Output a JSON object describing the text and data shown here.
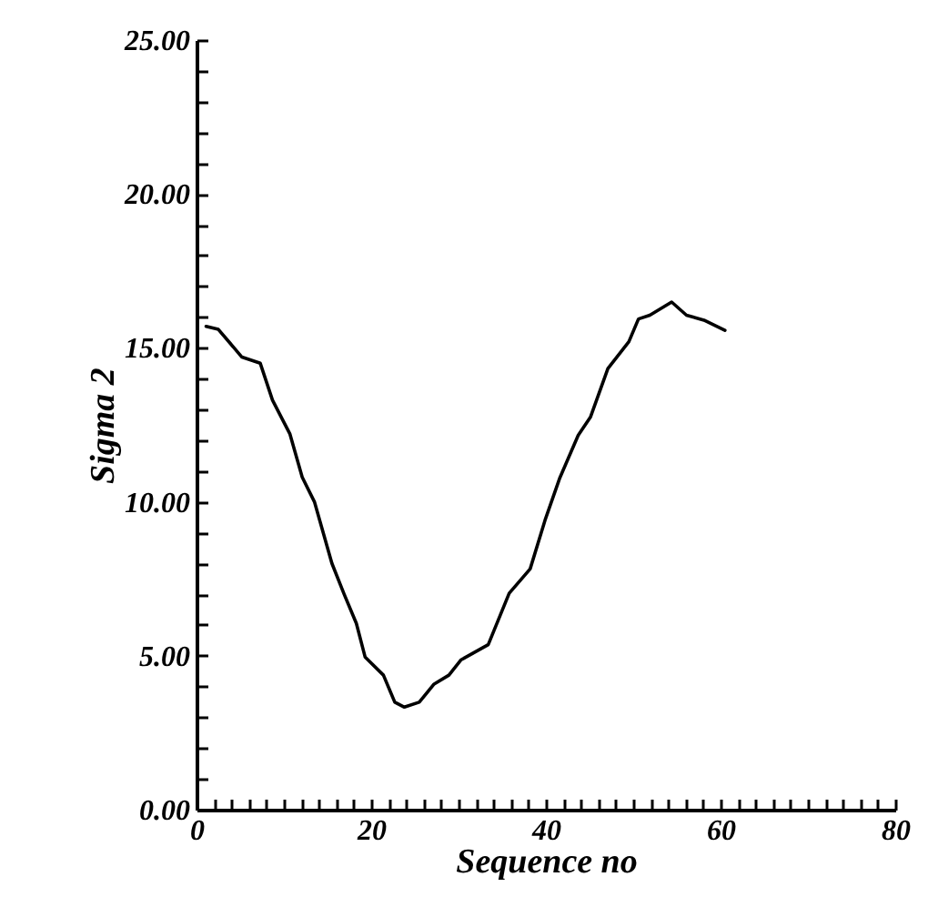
{
  "chart_data": {
    "type": "line",
    "xlabel": "Sequence no",
    "ylabel": "Sigma 2",
    "x": [
      1.1,
      2.5,
      5.2,
      7.3,
      8.7,
      10.7,
      12.1,
      13.5,
      15.5,
      16.9,
      18.3,
      19.3,
      21.4,
      22.7,
      23.8,
      25.5,
      27.2,
      28.9,
      30.3,
      33.4,
      35.8,
      38.2,
      39.9,
      41.6,
      43.7,
      45.1,
      47.1,
      49.5,
      50.6,
      51.9,
      54.4,
      56.1,
      58.1,
      60.5
    ],
    "series": [
      {
        "color": "#000000",
        "values": [
          15.7,
          15.6,
          14.7,
          14.5,
          13.3,
          12.2,
          10.8,
          10.0,
          8.0,
          7.0,
          6.05,
          4.96,
          4.37,
          3.49,
          3.33,
          3.49,
          4.08,
          4.37,
          4.87,
          5.36,
          7.03,
          7.82,
          9.4,
          10.78,
          12.16,
          12.75,
          14.33,
          15.2,
          15.94,
          16.06,
          16.49,
          16.06,
          15.9,
          15.57
        ]
      }
    ],
    "xlim": [
      0,
      80
    ],
    "ylim": [
      0,
      25
    ],
    "xticks": [
      {
        "value": 0,
        "label": "0"
      },
      {
        "value": 2,
        "label": null
      },
      {
        "value": 4,
        "label": null
      },
      {
        "value": 6,
        "label": null
      },
      {
        "value": 8,
        "label": null
      },
      {
        "value": 10,
        "label": null
      },
      {
        "value": 12,
        "label": null
      },
      {
        "value": 14,
        "label": null
      },
      {
        "value": 16,
        "label": null
      },
      {
        "value": 18,
        "label": null
      },
      {
        "value": 20,
        "label": "20"
      },
      {
        "value": 22,
        "label": null
      },
      {
        "value": 24,
        "label": null
      },
      {
        "value": 26,
        "label": null
      },
      {
        "value": 28,
        "label": null
      },
      {
        "value": 30,
        "label": null
      },
      {
        "value": 32,
        "label": null
      },
      {
        "value": 34,
        "label": null
      },
      {
        "value": 36,
        "label": null
      },
      {
        "value": 38,
        "label": null
      },
      {
        "value": 40,
        "label": "40"
      },
      {
        "value": 42,
        "label": null
      },
      {
        "value": 44,
        "label": null
      },
      {
        "value": 46,
        "label": null
      },
      {
        "value": 48,
        "label": null
      },
      {
        "value": 50,
        "label": null
      },
      {
        "value": 52,
        "label": null
      },
      {
        "value": 54,
        "label": null
      },
      {
        "value": 56,
        "label": null
      },
      {
        "value": 58,
        "label": null
      },
      {
        "value": 60,
        "label": "60"
      },
      {
        "value": 62,
        "label": null
      },
      {
        "value": 64,
        "label": null
      },
      {
        "value": 66,
        "label": null
      },
      {
        "value": 68,
        "label": null
      },
      {
        "value": 70,
        "label": null
      },
      {
        "value": 72,
        "label": null
      },
      {
        "value": 74,
        "label": null
      },
      {
        "value": 76,
        "label": null
      },
      {
        "value": 78,
        "label": null
      },
      {
        "value": 80,
        "label": "80"
      }
    ],
    "yticks": [
      {
        "value": 0,
        "label": "0.00"
      },
      {
        "value": 1,
        "label": null
      },
      {
        "value": 2,
        "label": null
      },
      {
        "value": 3,
        "label": null
      },
      {
        "value": 4,
        "label": null
      },
      {
        "value": 5,
        "label": "5.00"
      },
      {
        "value": 6,
        "label": null
      },
      {
        "value": 7,
        "label": null
      },
      {
        "value": 8,
        "label": null
      },
      {
        "value": 9,
        "label": null
      },
      {
        "value": 10,
        "label": "10.00"
      },
      {
        "value": 11,
        "label": null
      },
      {
        "value": 12,
        "label": null
      },
      {
        "value": 13,
        "label": null
      },
      {
        "value": 14,
        "label": null
      },
      {
        "value": 15,
        "label": "15.00"
      },
      {
        "value": 16,
        "label": null
      },
      {
        "value": 17,
        "label": null
      },
      {
        "value": 18,
        "label": null
      },
      {
        "value": 19,
        "label": null
      },
      {
        "value": 20,
        "label": "20.00"
      },
      {
        "value": 21,
        "label": null
      },
      {
        "value": 22,
        "label": null
      },
      {
        "value": 23,
        "label": null
      },
      {
        "value": 24,
        "label": null
      },
      {
        "value": 25,
        "label": "25.00"
      }
    ],
    "grid": false,
    "marker": "none",
    "line_style": "solid"
  }
}
